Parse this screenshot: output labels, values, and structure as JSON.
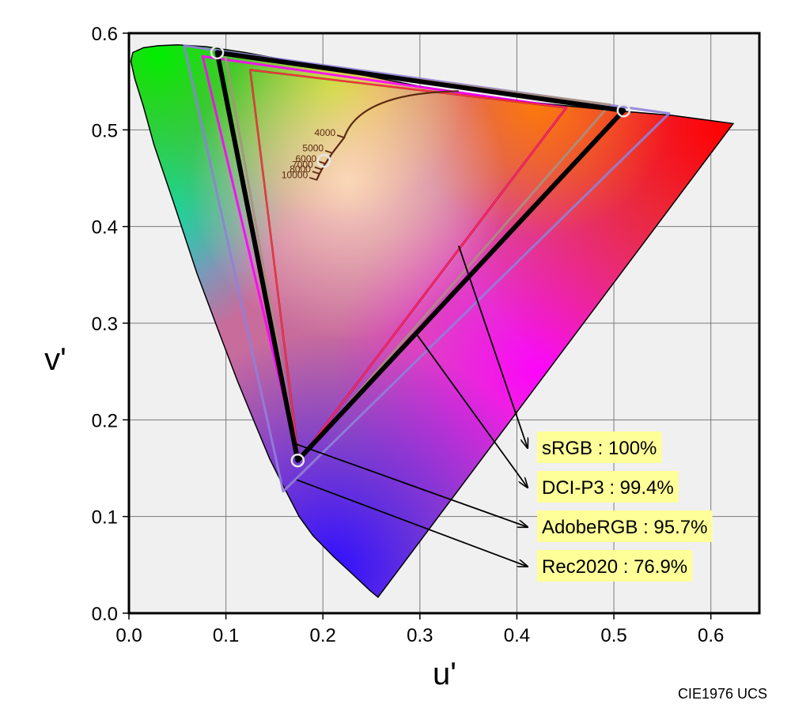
{
  "chart_data": {
    "type": "scatter",
    "xlabel": "u'",
    "ylabel": "v'",
    "xlim": [
      0.0,
      0.65
    ],
    "ylim": [
      0.0,
      0.6
    ],
    "x_ticks": [
      "0.0",
      "0.1",
      "0.2",
      "0.3",
      "0.4",
      "0.5",
      "0.6"
    ],
    "y_ticks": [
      "0.0",
      "0.1",
      "0.2",
      "0.3",
      "0.4",
      "0.5",
      "0.6"
    ],
    "grid": true,
    "footer": "CIE1976 UCS",
    "spectral_locus": [
      [
        0.2568,
        0.0165
      ],
      [
        0.2485,
        0.0235
      ],
      [
        0.2305,
        0.0405
      ],
      [
        0.2115,
        0.058
      ],
      [
        0.1897,
        0.0803
      ],
      [
        0.1755,
        0.1
      ],
      [
        0.16,
        0.13
      ],
      [
        0.145,
        0.16
      ],
      [
        0.1305,
        0.195
      ],
      [
        0.112,
        0.24
      ],
      [
        0.092,
        0.293
      ],
      [
        0.07,
        0.352
      ],
      [
        0.046,
        0.425
      ],
      [
        0.026,
        0.484
      ],
      [
        0.015,
        0.524
      ],
      [
        0.006,
        0.553
      ],
      [
        0.002,
        0.571
      ],
      [
        0.004,
        0.58
      ],
      [
        0.015,
        0.585
      ],
      [
        0.03,
        0.587
      ],
      [
        0.05,
        0.588
      ],
      [
        0.08,
        0.586
      ],
      [
        0.12,
        0.58
      ],
      [
        0.2,
        0.565
      ],
      [
        0.3,
        0.545
      ],
      [
        0.4,
        0.53
      ],
      [
        0.5,
        0.52
      ],
      [
        0.56,
        0.515
      ],
      [
        0.623,
        0.5065
      ]
    ],
    "gamuts": [
      {
        "name": "sRGB",
        "coverage": "100%",
        "color": "#000000",
        "points": [
          [
            0.451,
            0.523
          ],
          [
            0.125,
            0.562
          ],
          [
            0.175,
            0.158
          ]
        ]
      },
      {
        "name": "DCI-P3",
        "coverage": "99.4%",
        "color": "#a89080",
        "points": [
          [
            0.496,
            0.526
          ],
          [
            0.099,
            0.578
          ],
          [
            0.175,
            0.158
          ]
        ]
      },
      {
        "name": "AdobeRGB",
        "coverage": "95.7%",
        "color": "#ff00ff",
        "points": [
          [
            0.451,
            0.523
          ],
          [
            0.076,
            0.576
          ],
          [
            0.175,
            0.158
          ]
        ]
      },
      {
        "name": "Rec2020",
        "coverage": "76.9%",
        "color": "#9080d8",
        "points": [
          [
            0.557,
            0.517
          ],
          [
            0.057,
            0.587
          ],
          [
            0.159,
            0.126
          ]
        ]
      }
    ],
    "display_gamut": [
      [
        0.51,
        0.52
      ],
      [
        0.091,
        0.58
      ],
      [
        0.174,
        0.158
      ]
    ],
    "white_point": [
      0.201,
      0.468
    ],
    "cct_labels": [
      "4000",
      "5000",
      "6000",
      "7000",
      "8000",
      "10000"
    ],
    "cct_points": [
      {
        "label": "10000",
        "u": 0.1935,
        "v": 0.4482
      },
      {
        "label": "8000",
        "u": 0.1965,
        "v": 0.4545
      },
      {
        "label": "7000",
        "u": 0.1988,
        "v": 0.459
      },
      {
        "label": "6000",
        "u": 0.2024,
        "v": 0.465
      },
      {
        "label": "5000",
        "u": 0.2097,
        "v": 0.476
      },
      {
        "label": "4000",
        "u": 0.222,
        "v": 0.492
      }
    ],
    "planckian_end": [
      0.34,
      0.54
    ]
  }
}
